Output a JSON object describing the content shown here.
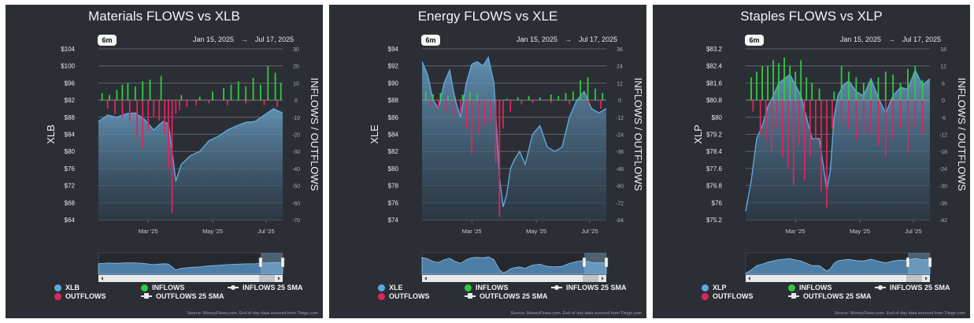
{
  "panels": [
    {
      "title": "Materials FLOWS vs XLB",
      "range_button": "6m",
      "date_from": "Jan 15, 2025",
      "date_to": "Jul 17, 2025",
      "arrow": "→",
      "left_label": "XLB",
      "right_label": "INFLOWS / OUTFLOWS",
      "left_ticks": [
        "$104",
        "$100",
        "$96",
        "$92",
        "$88",
        "$84",
        "$80",
        "$76",
        "$72",
        "$68",
        "$64"
      ],
      "right_ticks": [
        "30",
        "20",
        "10",
        "0",
        "-10",
        "-20",
        "-30",
        "-40",
        "-50",
        "-60",
        "-70"
      ],
      "x_ticks": [
        "Mar '25",
        "May '25",
        "Jul '25"
      ],
      "legend": {
        "price": "XLB",
        "inflows": "INFLOWS",
        "outflows": "OUTFLOWS",
        "inflows_sma": "INFLOWS 25 SMA",
        "outflows_sma": "OUTFLOWS 25 SMA"
      },
      "credit": "Source: MoneyFlows.com. End of day data sourced from Tiingo.com"
    },
    {
      "title": "Energy FLOWS vs XLE",
      "range_button": "6m",
      "date_from": "Jan 15, 2025",
      "date_to": "Jul 17, 2025",
      "arrow": "→",
      "left_label": "XLE",
      "right_label": "INFLOWS / OUTFLOWS",
      "left_ticks": [
        "$94",
        "$92",
        "$90",
        "$88",
        "$86",
        "$84",
        "$82",
        "$80",
        "$78",
        "$76",
        "$74"
      ],
      "right_ticks": [
        "36",
        "24",
        "12",
        "0",
        "-12",
        "-24",
        "-36",
        "-48",
        "-60",
        "-72",
        "-84"
      ],
      "x_ticks": [
        "Mar '25",
        "May '25",
        "Jul '25"
      ],
      "legend": {
        "price": "XLE",
        "inflows": "INFLOWS",
        "outflows": "OUTFLOWS",
        "inflows_sma": "INFLOWS 25 SMA",
        "outflows_sma": "OUTFLOWS 25 SMA"
      },
      "credit": "Source: MoneyFlows.com. End of day data sourced from Tiingo.com"
    },
    {
      "title": "Staples FLOWS vs XLP",
      "range_button": "6m",
      "date_from": "Jan 15, 2025",
      "date_to": "Jul 17, 2025",
      "arrow": "→",
      "left_label": "XLP",
      "right_label": "INFLOWS / OUTFLOWS",
      "left_ticks": [
        "$83.2",
        "$82.4",
        "$81.6",
        "$80.8",
        "$80",
        "$79.2",
        "$78.4",
        "$77.6",
        "$76.8",
        "$76",
        "$75.2"
      ],
      "right_ticks": [
        "18",
        "12",
        "6",
        "0",
        "-6",
        "-12",
        "-18",
        "-24",
        "-30",
        "-36",
        "-42"
      ],
      "x_ticks": [
        "Mar '25",
        "May '25",
        "Jul '25"
      ],
      "legend": {
        "price": "XLP",
        "inflows": "INFLOWS",
        "outflows": "OUTFLOWS",
        "inflows_sma": "INFLOWS 25 SMA",
        "outflows_sma": "OUTFLOWS 25 SMA"
      },
      "credit": "Source: MoneyFlows.com. End of day data sourced from Tiingo.com"
    }
  ],
  "colors": {
    "background": "#2b2f35",
    "price": "#5ea8de",
    "inflows": "#2ecc40",
    "outflows": "#e0245e",
    "grid": "#6b7077"
  },
  "chart_data": [
    {
      "type": "area",
      "title": "Materials FLOWS vs XLB",
      "ylabel": "XLB",
      "y2label": "INFLOWS / OUTFLOWS",
      "ylim": [
        64,
        104
      ],
      "y2lim": [
        -70,
        30
      ],
      "series": [
        {
          "name": "XLB",
          "type": "area",
          "x": [
            0,
            5,
            10,
            15,
            20,
            25,
            30,
            35,
            38,
            40,
            42,
            45,
            50,
            55,
            60,
            65,
            70,
            75,
            80,
            85,
            90,
            95,
            100
          ],
          "values": [
            87,
            88.5,
            88,
            88.8,
            89,
            87.5,
            85,
            87,
            86.5,
            80,
            73,
            77,
            79,
            80,
            82.5,
            83.5,
            85,
            86,
            86.8,
            87,
            88.5,
            90,
            89
          ]
        },
        {
          "name": "INFLOWS",
          "type": "bar",
          "x": [
            2,
            6,
            10,
            13,
            16,
            20,
            24,
            28,
            34,
            45,
            55,
            62,
            68,
            72,
            76,
            80,
            84,
            88,
            92,
            96,
            99
          ],
          "values": [
            4,
            3,
            6,
            9,
            10,
            8,
            11,
            12,
            14,
            3,
            2,
            5,
            7,
            9,
            11,
            8,
            13,
            9,
            20,
            16,
            10
          ]
        },
        {
          "name": "OUTFLOWS",
          "type": "bar",
          "x": [
            5,
            9,
            13,
            17,
            21,
            24,
            27,
            30,
            33,
            36,
            38,
            40,
            42,
            44,
            48,
            53,
            60,
            70,
            80,
            90,
            97
          ],
          "values": [
            -5,
            -8,
            -10,
            -12,
            -22,
            -28,
            -18,
            -10,
            -12,
            -20,
            -40,
            -66,
            -8,
            -6,
            -4,
            -3,
            -2,
            -3,
            -2,
            -3,
            -4
          ]
        }
      ]
    },
    {
      "type": "area",
      "title": "Energy FLOWS vs XLE",
      "ylabel": "XLE",
      "y2label": "INFLOWS / OUTFLOWS",
      "ylim": [
        74,
        94
      ],
      "y2lim": [
        -84,
        36
      ],
      "series": [
        {
          "name": "XLE",
          "type": "area",
          "x": [
            0,
            3,
            6,
            9,
            12,
            15,
            18,
            21,
            24,
            27,
            30,
            33,
            36,
            39,
            42,
            44,
            46,
            48,
            50,
            53,
            56,
            60,
            64,
            68,
            72,
            76,
            80,
            84,
            88,
            92,
            96,
            100
          ],
          "values": [
            92.5,
            91,
            88,
            87,
            90,
            91.5,
            88,
            86,
            90,
            92.2,
            92.5,
            92,
            93,
            90,
            79,
            75.5,
            77,
            80,
            81,
            82,
            80.5,
            84,
            85,
            82.5,
            82,
            82.5,
            86,
            88,
            89,
            87,
            86.5,
            87
          ]
        },
        {
          "name": "INFLOWS",
          "type": "bar",
          "x": [
            2,
            6,
            10,
            14,
            18,
            22,
            26,
            30,
            46,
            52,
            58,
            64,
            70,
            74,
            78,
            82,
            86,
            90,
            94,
            98
          ],
          "values": [
            6,
            4,
            5,
            3,
            2,
            4,
            6,
            5,
            1,
            2,
            3,
            2,
            4,
            3,
            5,
            6,
            14,
            16,
            8,
            5
          ]
        },
        {
          "name": "OUTFLOWS",
          "type": "bar",
          "x": [
            5,
            9,
            13,
            17,
            21,
            24,
            27,
            31,
            34,
            37,
            40,
            42,
            44,
            48,
            54,
            60,
            70,
            80,
            90,
            97
          ],
          "values": [
            -4,
            -6,
            -8,
            -12,
            -10,
            -20,
            -38,
            -24,
            -18,
            -16,
            -44,
            -82,
            -20,
            -8,
            -3,
            -2,
            -2,
            -3,
            -4,
            -6
          ]
        }
      ]
    },
    {
      "type": "area",
      "title": "Staples FLOWS vs XLP",
      "ylabel": "XLP",
      "y2label": "INFLOWS / OUTFLOWS",
      "ylim": [
        75.2,
        83.2
      ],
      "y2lim": [
        -42,
        18
      ],
      "series": [
        {
          "name": "XLP",
          "type": "area",
          "x": [
            0,
            3,
            6,
            9,
            12,
            15,
            18,
            21,
            24,
            27,
            30,
            33,
            36,
            40,
            44,
            46,
            48,
            50,
            53,
            56,
            60,
            64,
            68,
            72,
            76,
            80,
            84,
            88,
            92,
            96,
            100
          ],
          "values": [
            75.6,
            77,
            79,
            79.6,
            80.5,
            81,
            81.6,
            81.8,
            82,
            81.5,
            81,
            80,
            79,
            79,
            76.6,
            77.5,
            80,
            81,
            81.5,
            81.7,
            81.2,
            81,
            81.8,
            80.9,
            80.2,
            81,
            81.4,
            81.3,
            82.2,
            81.5,
            81.8
          ]
        },
        {
          "name": "INFLOWS",
          "type": "bar",
          "x": [
            3,
            6,
            9,
            12,
            15,
            18,
            21,
            24,
            27,
            30,
            33,
            36,
            40,
            48,
            52,
            56,
            60,
            64,
            68,
            72,
            76,
            80,
            84,
            88,
            92,
            96
          ],
          "values": [
            8,
            10,
            12,
            12,
            14,
            13,
            15,
            12,
            10,
            14,
            8,
            6,
            4,
            3,
            12,
            10,
            8,
            6,
            7,
            8,
            10,
            9,
            6,
            11,
            12,
            7
          ]
        },
        {
          "name": "OUTFLOWS",
          "type": "bar",
          "x": [
            4,
            8,
            11,
            14,
            17,
            20,
            23,
            26,
            29,
            32,
            35,
            38,
            41,
            44,
            47,
            52,
            56,
            60,
            64,
            68,
            72,
            76,
            80,
            84,
            88,
            92,
            96
          ],
          "values": [
            -4,
            -12,
            -14,
            -18,
            -10,
            -20,
            -24,
            -30,
            -16,
            -28,
            -20,
            -14,
            -32,
            -38,
            -10,
            -8,
            -10,
            -14,
            -12,
            -12,
            -16,
            -20,
            -14,
            -10,
            -18,
            -10,
            -12
          ]
        }
      ]
    }
  ]
}
